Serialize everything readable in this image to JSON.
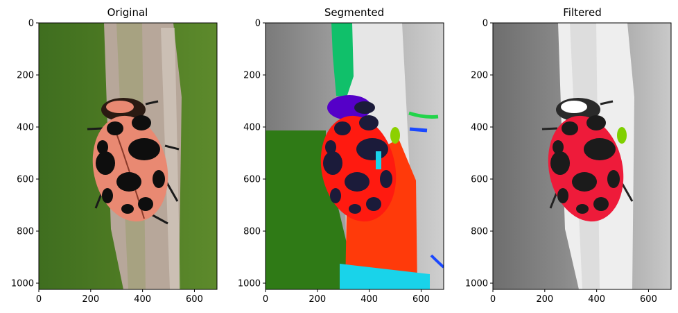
{
  "figure": {
    "panels": [
      {
        "title": "Original",
        "xticks": [
          "0",
          "200",
          "400",
          "600"
        ],
        "yticks": [
          "0",
          "200",
          "400",
          "600",
          "800",
          "1000"
        ],
        "colors": {
          "bg_left": "#3f6e1f",
          "bg_right": "#5d8a2c",
          "stem": "#b7a79a",
          "body": "#e98972",
          "spot": "#0e0e0e",
          "head": "#2a1a12"
        }
      },
      {
        "title": "Segmented",
        "xticks": [
          "0",
          "200",
          "400",
          "600"
        ],
        "yticks": [
          "0",
          "200",
          "400",
          "600",
          "800",
          "1000"
        ],
        "colors": {
          "bg": "#9b9b9b",
          "stem_light": "#e6e6e6",
          "green_region": "#2f7a16",
          "green_strip": "#10c06a",
          "body": "#ff1a10",
          "spot": "#1b1b3a",
          "orange_region": "#ff3a0a",
          "cyan_region": "#19d3ea",
          "blue_marks": "#1a48ff",
          "green_mark": "#22d44a",
          "purple_head": "#5500c8"
        }
      },
      {
        "title": "Filtered",
        "xticks": [
          "0",
          "200",
          "400",
          "600"
        ],
        "yticks": [
          "0",
          "200",
          "400",
          "600",
          "800",
          "1000"
        ],
        "colors": {
          "bg_dark": "#6e6e6e",
          "bg_light": "#c9c9c9",
          "stem_light": "#eeeeee",
          "body": "#ee1b3a",
          "spot": "#1b1b1b",
          "head": "#ffffff",
          "leg_green": "#7fd000"
        }
      }
    ]
  }
}
